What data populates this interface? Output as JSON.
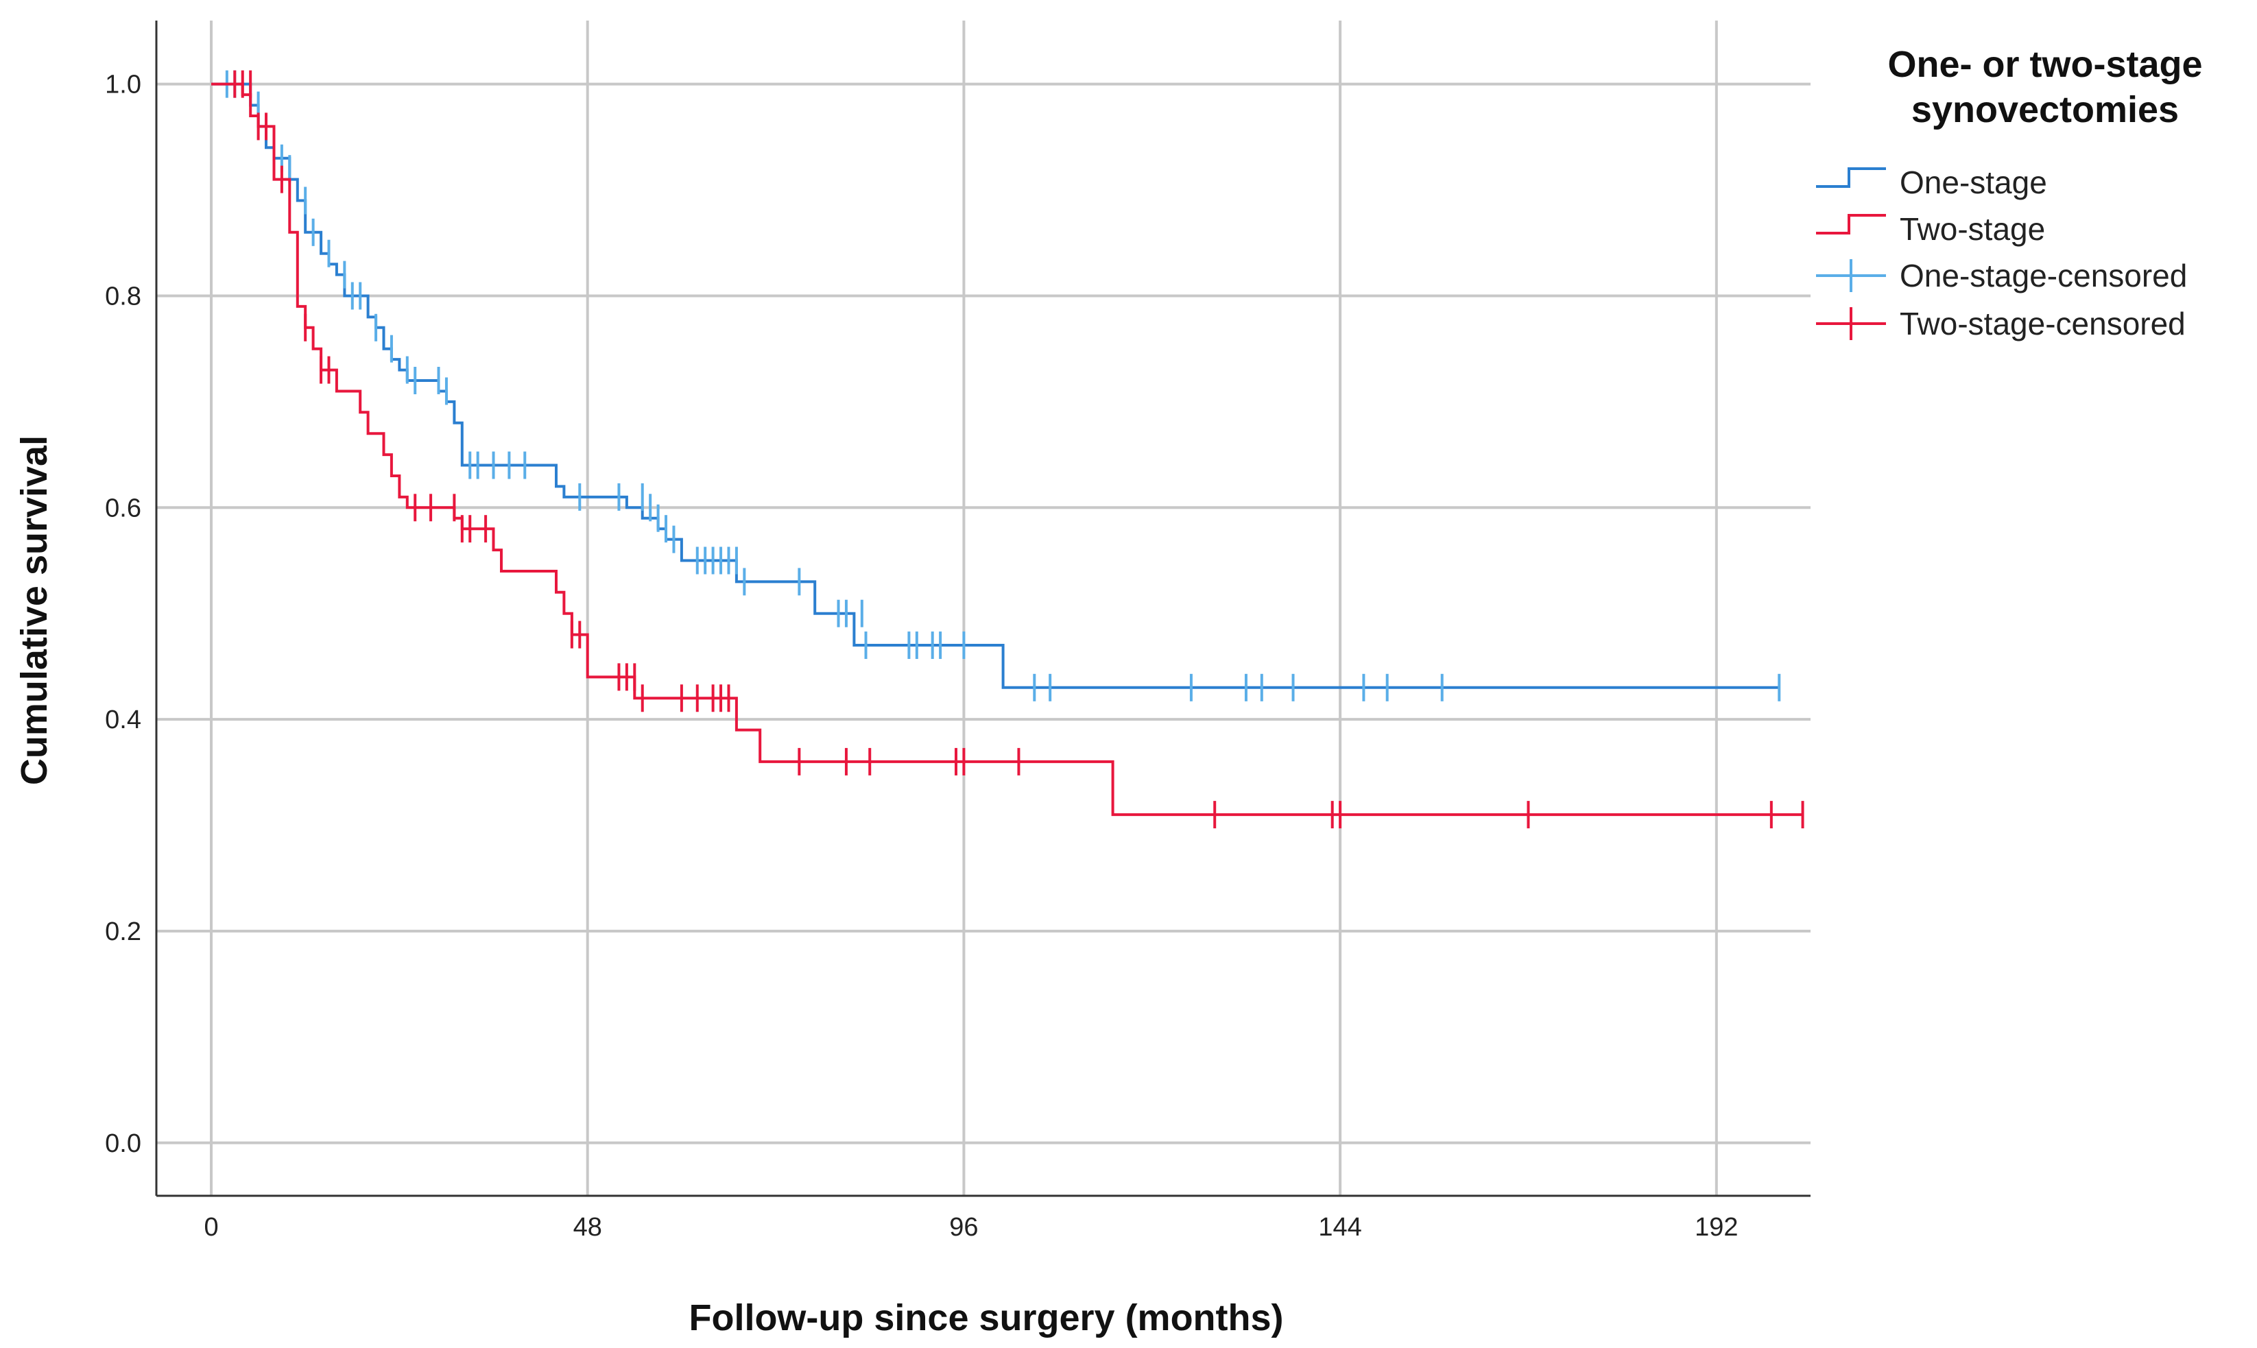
{
  "chart_data": {
    "type": "line",
    "subtype": "kaplan-meier",
    "title": "",
    "xlabel": "Follow-up since surgery (months)",
    "ylabel": "Cumulative survival",
    "xlim": [
      -7,
      204
    ],
    "ylim": [
      -0.05,
      1.06
    ],
    "xticks": [
      0,
      48,
      96,
      144,
      192
    ],
    "yticks": [
      0.0,
      0.2,
      0.4,
      0.6,
      0.8,
      1.0
    ],
    "ytick_labels": [
      "0.0",
      "0.2",
      "0.4",
      "0.6",
      "0.8",
      "1.0"
    ],
    "xtick_labels": [
      "0",
      "48",
      "96",
      "144",
      "192"
    ],
    "grid": true,
    "legend": {
      "title_lines": [
        "One- or two-stage",
        "synovectomies"
      ],
      "position": "right",
      "entries": [
        {
          "label": "One-stage",
          "kind": "step",
          "color": "#2b7fd0"
        },
        {
          "label": "Two-stage",
          "kind": "step",
          "color": "#e8173d"
        },
        {
          "label": "One-stage-censored",
          "kind": "censor",
          "color": "#5aaee8"
        },
        {
          "label": "Two-stage-censored",
          "kind": "censor",
          "color": "#e8173d"
        }
      ]
    },
    "series": [
      {
        "name": "One-stage",
        "color": "#2b7fd0",
        "censor_color": "#5aaee8",
        "steps": [
          [
            0,
            1.0
          ],
          [
            5,
            0.98
          ],
          [
            6,
            0.96
          ],
          [
            7,
            0.94
          ],
          [
            8,
            0.93
          ],
          [
            10,
            0.91
          ],
          [
            11,
            0.89
          ],
          [
            12,
            0.86
          ],
          [
            14,
            0.84
          ],
          [
            15,
            0.83
          ],
          [
            16,
            0.82
          ],
          [
            17,
            0.8
          ],
          [
            20,
            0.78
          ],
          [
            21,
            0.77
          ],
          [
            22,
            0.75
          ],
          [
            23,
            0.74
          ],
          [
            24,
            0.73
          ],
          [
            25,
            0.72
          ],
          [
            29,
            0.71
          ],
          [
            30,
            0.7
          ],
          [
            31,
            0.68
          ],
          [
            32,
            0.64
          ],
          [
            44,
            0.62
          ],
          [
            45,
            0.61
          ],
          [
            53,
            0.6
          ],
          [
            55,
            0.59
          ],
          [
            57,
            0.58
          ],
          [
            58,
            0.57
          ],
          [
            60,
            0.55
          ],
          [
            67,
            0.53
          ],
          [
            77,
            0.5
          ],
          [
            82,
            0.47
          ],
          [
            101,
            0.43
          ],
          [
            200,
            0.43
          ]
        ],
        "censored": [
          [
            2,
            1.0
          ],
          [
            3,
            1.0
          ],
          [
            6,
            0.98
          ],
          [
            8,
            0.94
          ],
          [
            9,
            0.93
          ],
          [
            10,
            0.92
          ],
          [
            12,
            0.89
          ],
          [
            13,
            0.86
          ],
          [
            15,
            0.84
          ],
          [
            17,
            0.82
          ],
          [
            18,
            0.8
          ],
          [
            19,
            0.8
          ],
          [
            21,
            0.77
          ],
          [
            23,
            0.75
          ],
          [
            25,
            0.73
          ],
          [
            26,
            0.72
          ],
          [
            29,
            0.72
          ],
          [
            30,
            0.71
          ],
          [
            33,
            0.64
          ],
          [
            34,
            0.64
          ],
          [
            36,
            0.64
          ],
          [
            38,
            0.64
          ],
          [
            40,
            0.64
          ],
          [
            47,
            0.61
          ],
          [
            52,
            0.61
          ],
          [
            55,
            0.61
          ],
          [
            56,
            0.6
          ],
          [
            57,
            0.59
          ],
          [
            58,
            0.58
          ],
          [
            59,
            0.57
          ],
          [
            62,
            0.55
          ],
          [
            63,
            0.55
          ],
          [
            64,
            0.55
          ],
          [
            65,
            0.55
          ],
          [
            66,
            0.55
          ],
          [
            67,
            0.55
          ],
          [
            68,
            0.53
          ],
          [
            75,
            0.53
          ],
          [
            80,
            0.5
          ],
          [
            81,
            0.5
          ],
          [
            83,
            0.5
          ],
          [
            83.5,
            0.47
          ],
          [
            89,
            0.47
          ],
          [
            90,
            0.47
          ],
          [
            92,
            0.47
          ],
          [
            93,
            0.47
          ],
          [
            96,
            0.47
          ],
          [
            105,
            0.43
          ],
          [
            107,
            0.43
          ],
          [
            125,
            0.43
          ],
          [
            132,
            0.43
          ],
          [
            134,
            0.43
          ],
          [
            138,
            0.43
          ],
          [
            147,
            0.43
          ],
          [
            150,
            0.43
          ],
          [
            157,
            0.43
          ],
          [
            200,
            0.43
          ]
        ]
      },
      {
        "name": "Two-stage",
        "color": "#e8173d",
        "censor_color": "#e8173d",
        "steps": [
          [
            0,
            1.0
          ],
          [
            4,
            0.99
          ],
          [
            5,
            0.97
          ],
          [
            6,
            0.96
          ],
          [
            8,
            0.91
          ],
          [
            10,
            0.86
          ],
          [
            11,
            0.79
          ],
          [
            12,
            0.77
          ],
          [
            13,
            0.75
          ],
          [
            14,
            0.73
          ],
          [
            16,
            0.71
          ],
          [
            19,
            0.69
          ],
          [
            20,
            0.67
          ],
          [
            22,
            0.65
          ],
          [
            23,
            0.63
          ],
          [
            24,
            0.61
          ],
          [
            25,
            0.6
          ],
          [
            31,
            0.59
          ],
          [
            32,
            0.58
          ],
          [
            36,
            0.56
          ],
          [
            37,
            0.54
          ],
          [
            44,
            0.52
          ],
          [
            45,
            0.5
          ],
          [
            46,
            0.48
          ],
          [
            48,
            0.44
          ],
          [
            54,
            0.42
          ],
          [
            67,
            0.39
          ],
          [
            70,
            0.36
          ],
          [
            115,
            0.31
          ],
          [
            203,
            0.31
          ]
        ],
        "censored": [
          [
            3,
            1.0
          ],
          [
            4,
            1.0
          ],
          [
            5,
            1.0
          ],
          [
            6,
            0.96
          ],
          [
            7,
            0.96
          ],
          [
            9,
            0.91
          ],
          [
            12,
            0.77
          ],
          [
            14,
            0.73
          ],
          [
            15,
            0.73
          ],
          [
            26,
            0.6
          ],
          [
            28,
            0.6
          ],
          [
            31,
            0.6
          ],
          [
            32,
            0.58
          ],
          [
            33,
            0.58
          ],
          [
            35,
            0.58
          ],
          [
            46,
            0.48
          ],
          [
            47,
            0.48
          ],
          [
            52,
            0.44
          ],
          [
            53,
            0.44
          ],
          [
            54,
            0.44
          ],
          [
            55,
            0.42
          ],
          [
            60,
            0.42
          ],
          [
            62,
            0.42
          ],
          [
            64,
            0.42
          ],
          [
            65,
            0.42
          ],
          [
            66,
            0.42
          ],
          [
            75,
            0.36
          ],
          [
            81,
            0.36
          ],
          [
            84,
            0.36
          ],
          [
            95,
            0.36
          ],
          [
            96,
            0.36
          ],
          [
            103,
            0.36
          ],
          [
            128,
            0.31
          ],
          [
            143,
            0.31
          ],
          [
            144,
            0.31
          ],
          [
            168,
            0.31
          ],
          [
            199,
            0.31
          ],
          [
            203,
            0.31
          ]
        ]
      }
    ]
  }
}
